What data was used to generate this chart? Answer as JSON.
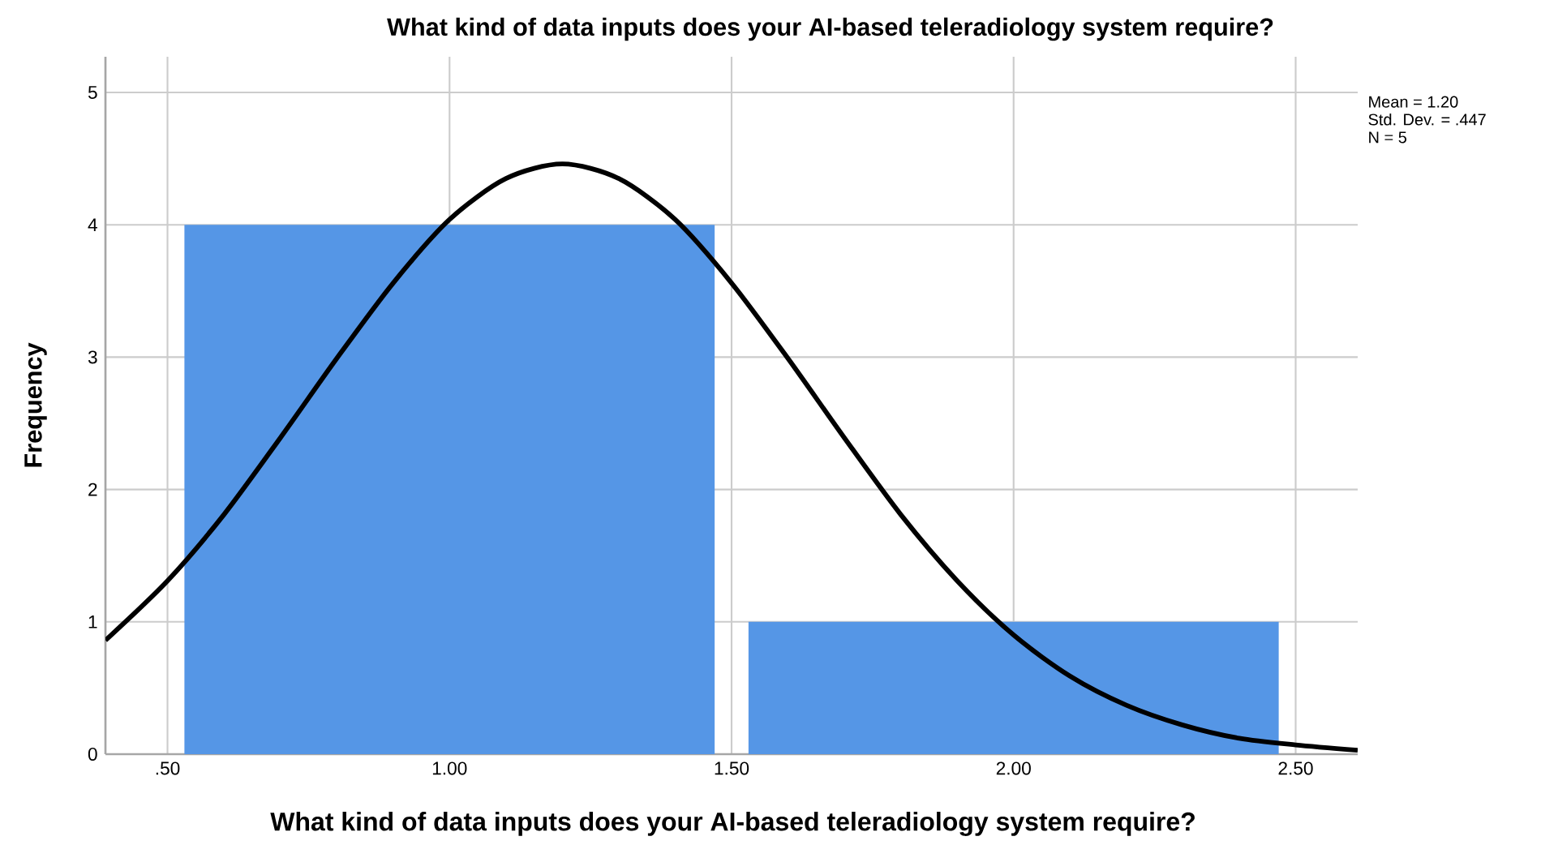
{
  "chart_data": {
    "type": "histogram",
    "title": "What kind of data inputs does your AI-based teleradiology system require?",
    "xlabel": "What kind of data inputs does your AI-based teleradiology system require?",
    "ylabel": "Frequency",
    "bins": [
      0.5,
      1.5,
      2.5
    ],
    "values": [
      4,
      1
    ],
    "color": "#5596e6",
    "series": [
      {
        "type": "line",
        "color": "#000000",
        "x": [
          0.39,
          0.5,
          0.6,
          0.7,
          0.8,
          0.9,
          1.0,
          1.1,
          1.2,
          1.3,
          1.4,
          1.5,
          1.6,
          1.7,
          1.8,
          1.9,
          2.0,
          2.1,
          2.2,
          2.3,
          2.4,
          2.5,
          2.61
        ],
        "values": [
          0.86,
          1.31,
          1.81,
          2.39,
          2.99,
          3.56,
          4.04,
          4.35,
          4.46,
          4.35,
          4.04,
          3.56,
          2.99,
          2.39,
          1.81,
          1.31,
          0.9,
          0.59,
          0.37,
          0.22,
          0.12,
          0.07,
          0.03
        ]
      }
    ],
    "xlim": [
      0.39,
      2.61
    ],
    "ylim": [
      0,
      5.27
    ],
    "xticks": [
      {
        "value": 0.5,
        "label": ".50"
      },
      {
        "value": 1.0,
        "label": "1.00"
      },
      {
        "value": 1.5,
        "label": "1.50"
      },
      {
        "value": 2.0,
        "label": "2.00"
      },
      {
        "value": 2.5,
        "label": "2.50"
      }
    ],
    "yticks": [
      0,
      1,
      2,
      3,
      4,
      5
    ],
    "grid": true,
    "annotations": [
      "Mean = 1.20",
      "Std. Dev. = .447",
      "N = 5"
    ]
  }
}
